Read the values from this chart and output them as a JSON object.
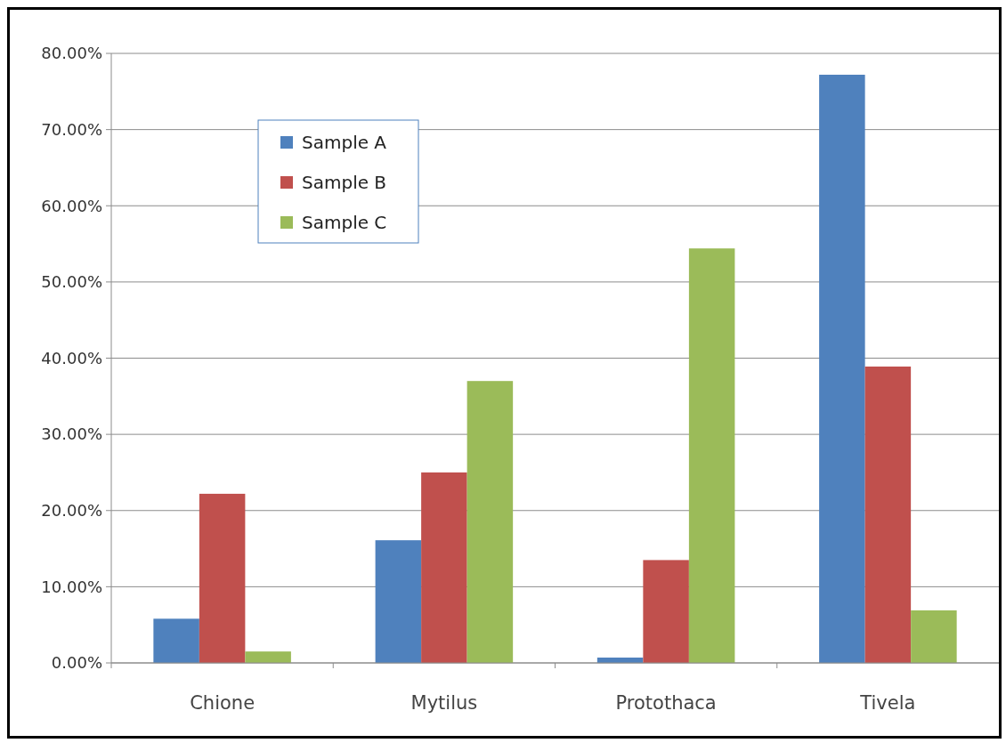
{
  "chart_data": {
    "type": "bar",
    "categories": [
      "Chione",
      "Mytilus",
      "Protothaca",
      "Tivela"
    ],
    "series": [
      {
        "name": "Sample A",
        "color": "#4f81bd",
        "values": [
          5.8,
          16.1,
          0.7,
          77.2
        ]
      },
      {
        "name": "Sample B",
        "color": "#c0504d",
        "values": [
          22.2,
          25.0,
          13.5,
          38.9
        ]
      },
      {
        "name": "Sample C",
        "color": "#9bbb59",
        "values": [
          1.5,
          37.0,
          54.4,
          6.9
        ]
      }
    ],
    "ylim": [
      0,
      80
    ],
    "yticks": [
      {
        "value": 0,
        "label": "0.00%"
      },
      {
        "value": 10,
        "label": "10.00%"
      },
      {
        "value": 20,
        "label": "20.00%"
      },
      {
        "value": 30,
        "label": "30.00%"
      },
      {
        "value": 40,
        "label": "40.00%"
      },
      {
        "value": 50,
        "label": "50.00%"
      },
      {
        "value": 60,
        "label": "60.00%"
      },
      {
        "value": 70,
        "label": "70.00%"
      },
      {
        "value": 80,
        "label": "80.00%"
      }
    ],
    "grid": "y",
    "legend": "top left"
  }
}
